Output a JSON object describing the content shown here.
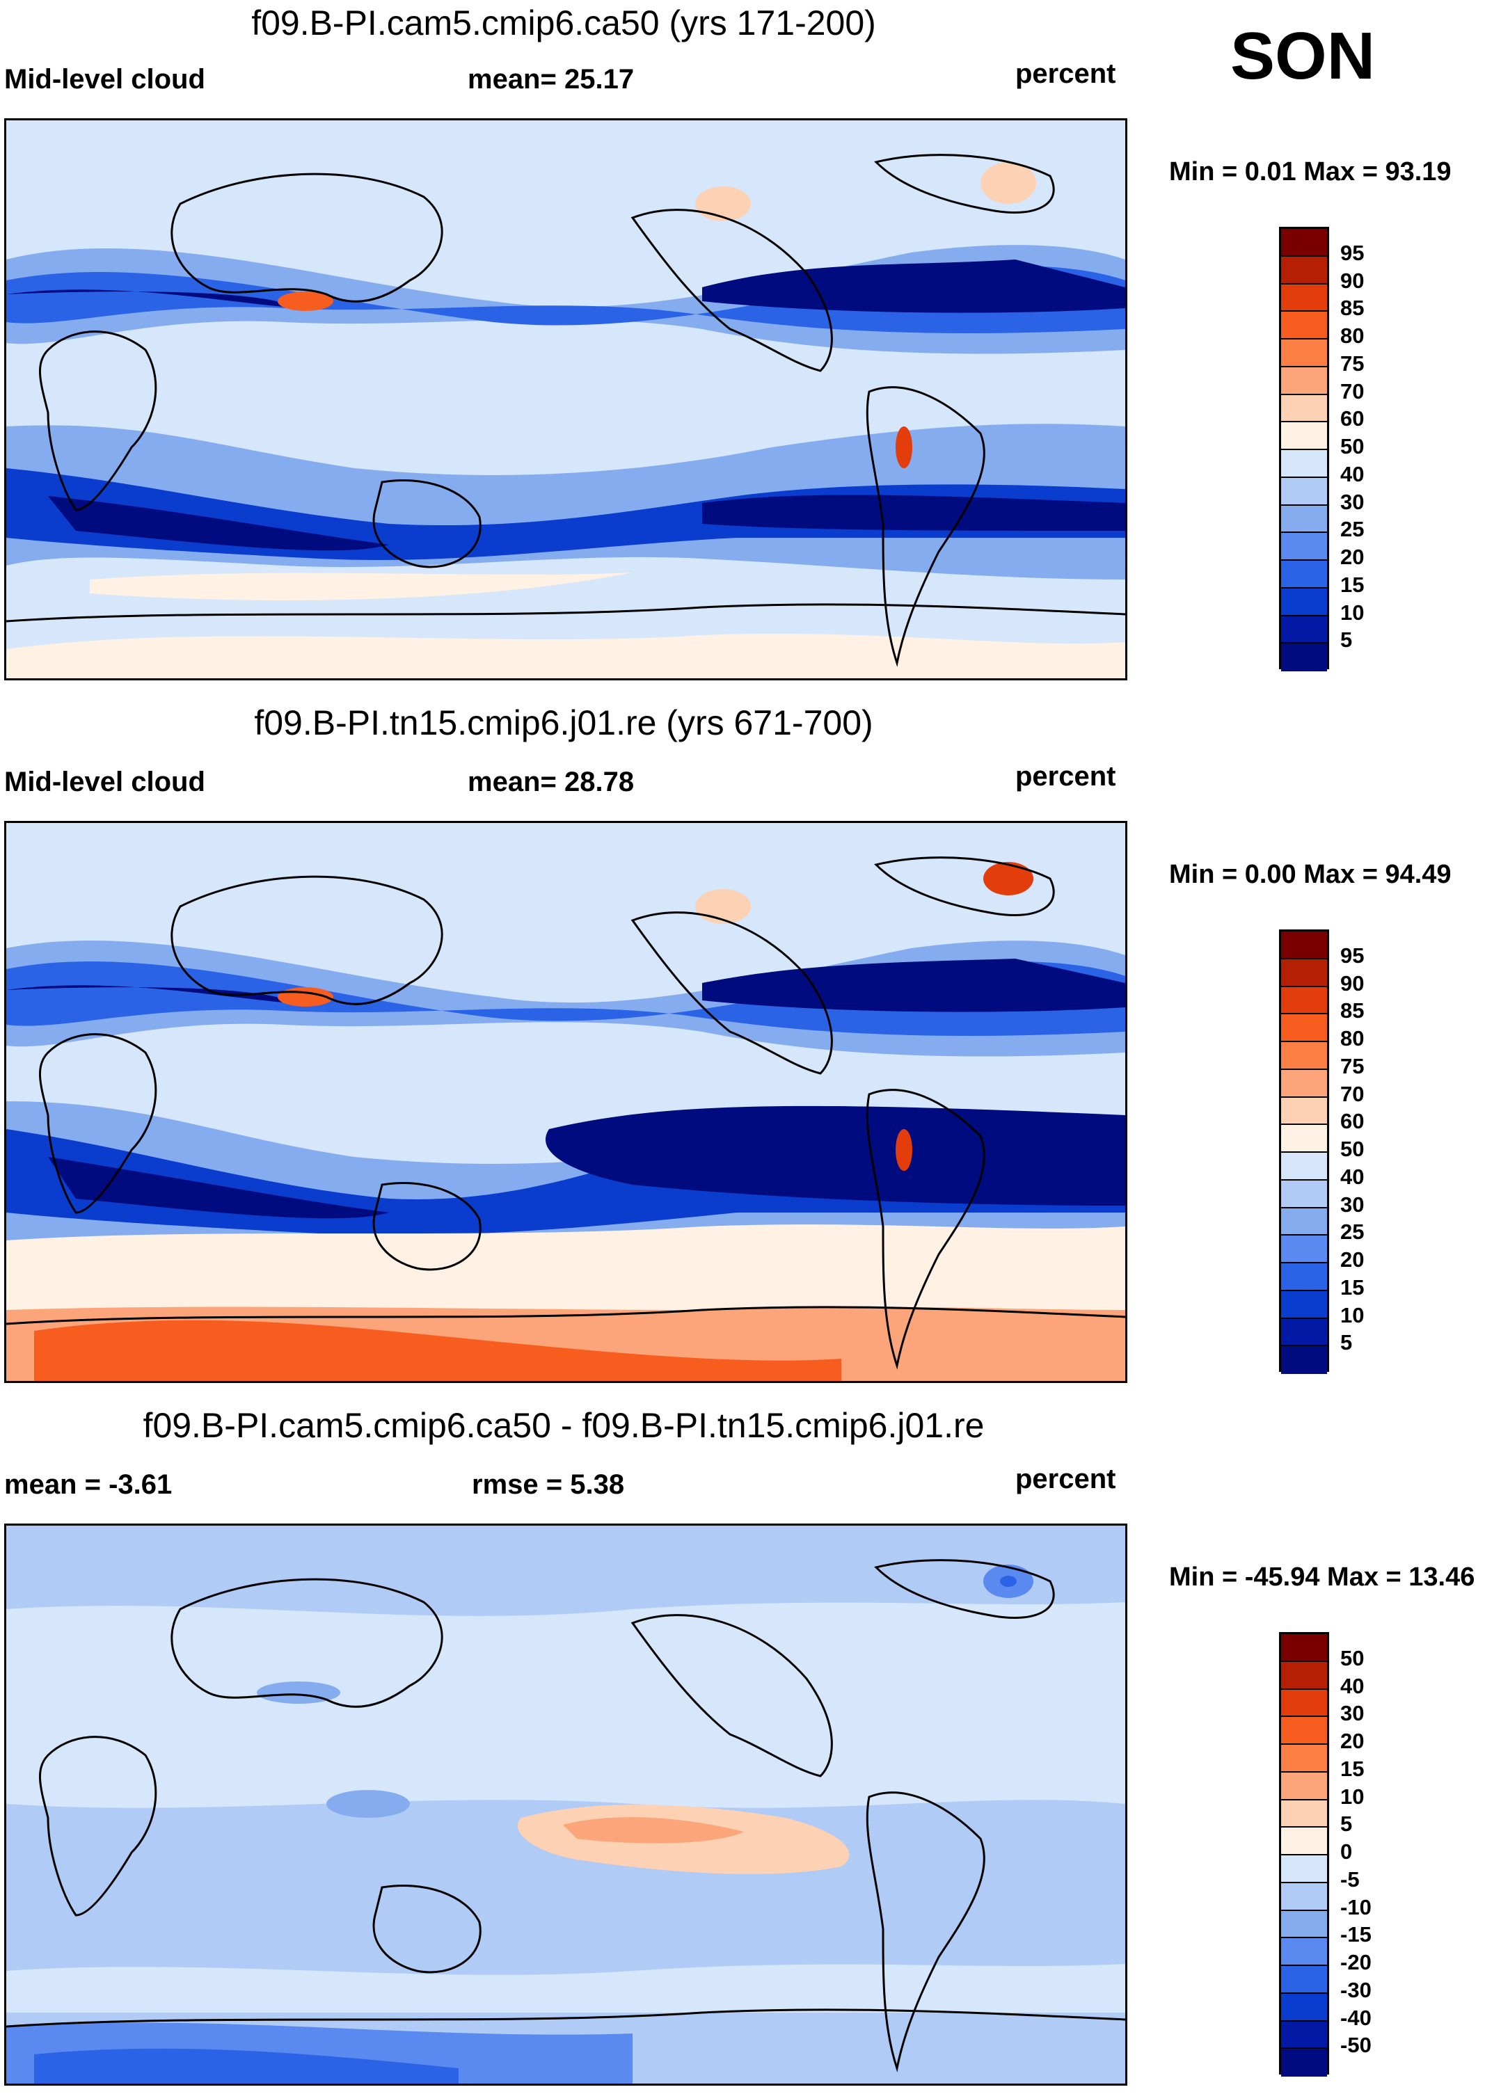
{
  "season": "SON",
  "panels": [
    {
      "title": "f09.B-PI.cam5.cmip6.ca50 (yrs 171-200)",
      "left_label": "Mid-level cloud",
      "center_label": "mean=  25.17",
      "right_label": "percent",
      "minmax": "Min =   0.01 Max =  93.19",
      "colorbar": {
        "levels": [
          "95",
          "90",
          "85",
          "80",
          "75",
          "70",
          "60",
          "50",
          "40",
          "30",
          "25",
          "20",
          "15",
          "10",
          "5"
        ],
        "colors": [
          "#7a0000",
          "#b51f04",
          "#e23d0a",
          "#f85d20",
          "#fb7e45",
          "#fca57a",
          "#fdd1b3",
          "#fff1e3",
          "#d6e6fb",
          "#b0cbf5",
          "#86acf0",
          "#5a8af0",
          "#2b63e6",
          "#0a3ccd",
          "#0219a6",
          "#000b80"
        ]
      }
    },
    {
      "title": "f09.B-PI.tn15.cmip6.j01.re (yrs 671-700)",
      "left_label": "Mid-level cloud",
      "center_label": "mean=  28.78",
      "right_label": "percent",
      "minmax": "Min =   0.00 Max =  94.49",
      "colorbar": {
        "levels": [
          "95",
          "90",
          "85",
          "80",
          "75",
          "70",
          "60",
          "50",
          "40",
          "30",
          "25",
          "20",
          "15",
          "10",
          "5"
        ],
        "colors": [
          "#7a0000",
          "#b51f04",
          "#e23d0a",
          "#f85d20",
          "#fb7e45",
          "#fca57a",
          "#fdd1b3",
          "#fff1e3",
          "#d6e6fb",
          "#b0cbf5",
          "#86acf0",
          "#5a8af0",
          "#2b63e6",
          "#0a3ccd",
          "#0219a6",
          "#000b80"
        ]
      }
    },
    {
      "title": "f09.B-PI.cam5.cmip6.ca50 - f09.B-PI.tn15.cmip6.j01.re",
      "left_label": "mean =  -3.61",
      "center_label": "rmse =   5.38",
      "right_label": "percent",
      "minmax": "Min = -45.94 Max =  13.46",
      "colorbar": {
        "levels": [
          "50",
          "40",
          "30",
          "20",
          "15",
          "10",
          "5",
          "0",
          "-5",
          "-10",
          "-15",
          "-20",
          "-30",
          "-40",
          "-50"
        ],
        "colors": [
          "#7a0000",
          "#b51f04",
          "#e23d0a",
          "#f85d20",
          "#fb7e45",
          "#fca57a",
          "#fdd1b3",
          "#fff1e3",
          "#d6e6fb",
          "#b0cbf5",
          "#86acf0",
          "#5a8af0",
          "#2b63e6",
          "#0a3ccd",
          "#0219a6",
          "#000b80"
        ]
      }
    }
  ]
}
